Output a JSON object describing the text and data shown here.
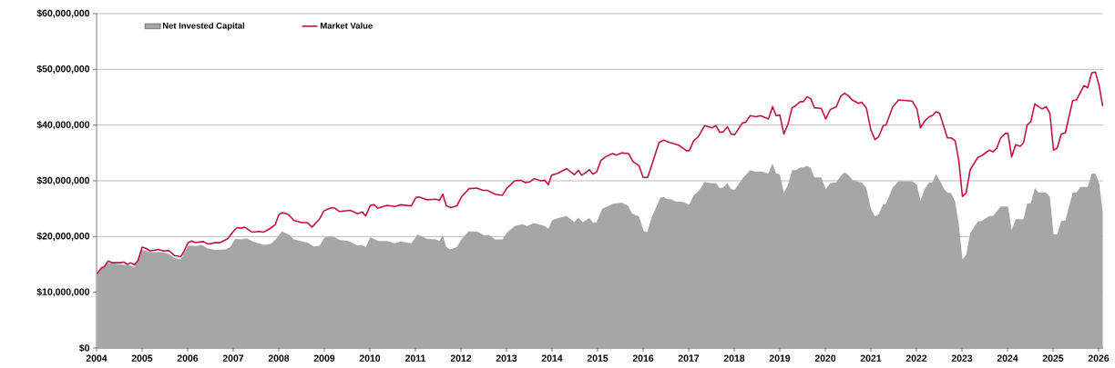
{
  "chart_data": {
    "type": "line",
    "xlim": [
      2004,
      2026.1
    ],
    "xticks": [
      2004,
      2005,
      2006,
      2007,
      2008,
      2009,
      2010,
      2011,
      2012,
      2013,
      2014,
      2015,
      2016,
      2017,
      2018,
      2019,
      2020,
      2021,
      2022,
      2023,
      2024,
      2025,
      2026
    ],
    "ylim": [
      0,
      60000000
    ],
    "yticks": [
      {
        "value": 0,
        "label": "$0"
      },
      {
        "value": 10000000,
        "label": "$10,000,000"
      },
      {
        "value": 20000000,
        "label": "$20,000,000"
      },
      {
        "value": 30000000,
        "label": "$30,000,000"
      },
      {
        "value": 40000000,
        "label": "$40,000,000"
      },
      {
        "value": 50000000,
        "label": "$50,000,000"
      },
      {
        "value": 60000000,
        "label": "$60,000,000"
      }
    ],
    "grid": "y",
    "legend": "top left",
    "series": [
      {
        "name": "Net Invested Capital",
        "type": "area",
        "color": "#a6a6a6",
        "x": [
          2004.01,
          2004.11,
          2004.25,
          2004.53,
          2004.75,
          2004.83,
          2004.99,
          2005.18,
          2005.41,
          2005.58,
          2005.71,
          2005.85,
          2006.01,
          2006.17,
          2006.31,
          2006.43,
          2006.6,
          2006.83,
          2006.93,
          2007.05,
          2007.17,
          2007.3,
          2007.43,
          2007.67,
          2007.83,
          2007.93,
          2008.07,
          2008.23,
          2008.33,
          2008.63,
          2008.77,
          2008.9,
          2009.0,
          2009.13,
          2009.23,
          2009.33,
          2009.53,
          2009.73,
          2009.83,
          2009.91,
          2010.01,
          2010.18,
          2010.38,
          2010.55,
          2010.68,
          2010.91,
          2011.05,
          2011.25,
          2011.45,
          2011.53,
          2011.6,
          2011.68,
          2011.76,
          2011.91,
          2012.01,
          2012.16,
          2012.35,
          2012.51,
          2012.61,
          2012.75,
          2012.91,
          2013.01,
          2013.18,
          2013.35,
          2013.45,
          2013.61,
          2013.84,
          2013.92,
          2014.0,
          2014.13,
          2014.32,
          2014.49,
          2014.58,
          2014.67,
          2014.82,
          2014.9,
          2014.98,
          2015.1,
          2015.25,
          2015.33,
          2015.53,
          2015.67,
          2015.76,
          2015.91,
          2016.01,
          2016.09,
          2016.18,
          2016.38,
          2016.45,
          2016.53,
          2016.61,
          2016.71,
          2016.88,
          2017.01,
          2017.11,
          2017.23,
          2017.35,
          2017.48,
          2017.6,
          2017.68,
          2017.76,
          2017.85,
          2017.93,
          2018.01,
          2018.18,
          2018.35,
          2018.48,
          2018.58,
          2018.75,
          2018.84,
          2018.92,
          2019.0,
          2019.09,
          2019.18,
          2019.27,
          2019.35,
          2019.45,
          2019.52,
          2019.6,
          2019.68,
          2019.76,
          2019.91,
          2020.01,
          2020.11,
          2020.24,
          2020.34,
          2020.42,
          2020.5,
          2020.59,
          2020.73,
          2020.8,
          2020.9,
          2021.0,
          2021.09,
          2021.17,
          2021.27,
          2021.33,
          2021.48,
          2021.61,
          2021.91,
          2022.01,
          2022.09,
          2022.18,
          2022.28,
          2022.35,
          2022.43,
          2022.51,
          2022.61,
          2022.68,
          2022.76,
          2022.85,
          2022.93,
          2023.01,
          2023.09,
          2023.18,
          2023.35,
          2023.43,
          2023.6,
          2023.68,
          2023.85,
          2024.01,
          2024.09,
          2024.18,
          2024.35,
          2024.43,
          2024.51,
          2024.6,
          2024.68,
          2024.85,
          2024.93,
          2025.01,
          2025.09,
          2025.18,
          2025.27,
          2025.43,
          2025.51,
          2025.6,
          2025.76,
          2025.85,
          2025.93,
          2026.01,
          2026.09
        ],
        "values": [
          13000000,
          14300000,
          15300000,
          15000000,
          14800000,
          14500000,
          17600000,
          17200000,
          17200000,
          16900000,
          16200000,
          15900000,
          18400000,
          18300000,
          18500000,
          17900000,
          17600000,
          17700000,
          18100000,
          19600000,
          19500000,
          19700000,
          19100000,
          18500000,
          18700000,
          19500000,
          20900000,
          20300000,
          19500000,
          18900000,
          18200000,
          18400000,
          19800000,
          20100000,
          19900000,
          19400000,
          19200000,
          18400000,
          18500000,
          18100000,
          19900000,
          19200000,
          19200000,
          18800000,
          19100000,
          18800000,
          20400000,
          19600000,
          19500000,
          19200000,
          20200000,
          18100000,
          17700000,
          18100000,
          19500000,
          20900000,
          20900000,
          20200000,
          20300000,
          19500000,
          19500000,
          20700000,
          21900000,
          22200000,
          21900000,
          22400000,
          21900000,
          21400000,
          22900000,
          23300000,
          23700000,
          22600000,
          23400000,
          22600000,
          23300000,
          22500000,
          22600000,
          25000000,
          25500000,
          25900000,
          26100000,
          25500000,
          24100000,
          23600000,
          21000000,
          20800000,
          23300000,
          27000000,
          27100000,
          26700000,
          26700000,
          26300000,
          26200000,
          25700000,
          27400000,
          28300000,
          29800000,
          29600000,
          29600000,
          28700000,
          28800000,
          29600000,
          28500000,
          28400000,
          30400000,
          31900000,
          31600000,
          31700000,
          31300000,
          33100000,
          31300000,
          31200000,
          27800000,
          29300000,
          31900000,
          31900000,
          32400000,
          32400000,
          32700000,
          32300000,
          30600000,
          30600000,
          28500000,
          29600000,
          29700000,
          30900000,
          31500000,
          31100000,
          30200000,
          29800000,
          29700000,
          28700000,
          25000000,
          23600000,
          24000000,
          25800000,
          25900000,
          28800000,
          29900000,
          29900000,
          29300000,
          26400000,
          28500000,
          29700000,
          29700000,
          31200000,
          30100000,
          28500000,
          27900000,
          27800000,
          26300000,
          22200000,
          15900000,
          16700000,
          20600000,
          22700000,
          22800000,
          23700000,
          23700000,
          25400000,
          25400000,
          21200000,
          23100000,
          23100000,
          25900000,
          26000000,
          28700000,
          27900000,
          27900000,
          27100000,
          20400000,
          20400000,
          22800000,
          22900000,
          27900000,
          27900000,
          28900000,
          28900000,
          31300000,
          31300000,
          29600000,
          24400000
        ]
      },
      {
        "name": "Market Value",
        "color": "#c0143c",
        "x": [
          2004.01,
          2004.11,
          2004.17,
          2004.25,
          2004.35,
          2004.51,
          2004.6,
          2004.68,
          2004.75,
          2004.83,
          2004.91,
          2005.0,
          2005.08,
          2005.18,
          2005.35,
          2005.48,
          2005.58,
          2005.71,
          2005.85,
          2005.91,
          2006.01,
          2006.09,
          2006.17,
          2006.35,
          2006.43,
          2006.5,
          2006.6,
          2006.71,
          2006.88,
          2007.01,
          2007.09,
          2007.17,
          2007.25,
          2007.41,
          2007.57,
          2007.67,
          2007.8,
          2007.92,
          2008.0,
          2008.08,
          2008.17,
          2008.23,
          2008.33,
          2008.5,
          2008.63,
          2008.73,
          2008.9,
          2008.99,
          2009.07,
          2009.17,
          2009.23,
          2009.33,
          2009.57,
          2009.73,
          2009.83,
          2009.91,
          2010.01,
          2010.09,
          2010.18,
          2010.38,
          2010.55,
          2010.68,
          2010.91,
          2011.01,
          2011.08,
          2011.25,
          2011.45,
          2011.53,
          2011.6,
          2011.68,
          2011.78,
          2011.91,
          2012.01,
          2012.18,
          2012.35,
          2012.48,
          2012.58,
          2012.75,
          2012.91,
          2013.01,
          2013.08,
          2013.18,
          2013.31,
          2013.41,
          2013.51,
          2013.61,
          2013.75,
          2013.84,
          2013.92,
          2013.99,
          2014.11,
          2014.21,
          2014.32,
          2014.41,
          2014.49,
          2014.58,
          2014.65,
          2014.73,
          2014.82,
          2014.9,
          2014.98,
          2015.07,
          2015.17,
          2015.25,
          2015.33,
          2015.41,
          2015.53,
          2015.68,
          2015.78,
          2015.91,
          2016.0,
          2016.1,
          2016.35,
          2016.45,
          2016.58,
          2016.78,
          2016.95,
          2017.01,
          2017.11,
          2017.21,
          2017.35,
          2017.51,
          2017.6,
          2017.68,
          2017.76,
          2017.85,
          2017.93,
          2018.01,
          2018.18,
          2018.25,
          2018.35,
          2018.48,
          2018.58,
          2018.75,
          2018.84,
          2018.92,
          2019.0,
          2019.09,
          2019.18,
          2019.27,
          2019.35,
          2019.45,
          2019.52,
          2019.6,
          2019.68,
          2019.76,
          2019.91,
          2020.01,
          2020.11,
          2020.24,
          2020.34,
          2020.42,
          2020.5,
          2020.59,
          2020.73,
          2020.8,
          2020.9,
          2021.0,
          2021.09,
          2021.17,
          2021.27,
          2021.33,
          2021.48,
          2021.61,
          2021.91,
          2022.01,
          2022.09,
          2022.18,
          2022.28,
          2022.35,
          2022.43,
          2022.51,
          2022.68,
          2022.76,
          2022.85,
          2022.93,
          2023.01,
          2023.09,
          2023.18,
          2023.35,
          2023.43,
          2023.6,
          2023.68,
          2023.76,
          2023.85,
          2023.95,
          2024.01,
          2024.09,
          2024.18,
          2024.28,
          2024.35,
          2024.43,
          2024.51,
          2024.6,
          2024.68,
          2024.76,
          2024.85,
          2024.93,
          2025.01,
          2025.09,
          2025.18,
          2025.27,
          2025.43,
          2025.51,
          2025.68,
          2025.76,
          2025.85,
          2025.93,
          2026.01,
          2026.09
        ],
        "values": [
          13300000,
          14400000,
          14600000,
          15600000,
          15300000,
          15300000,
          15400000,
          15000000,
          15300000,
          14900000,
          15700000,
          18100000,
          17900000,
          17400000,
          17700000,
          17400000,
          17500000,
          16600000,
          16400000,
          17200000,
          18900000,
          19200000,
          18900000,
          19100000,
          18700000,
          18700000,
          18900000,
          18900000,
          19600000,
          21000000,
          21600000,
          21500000,
          21700000,
          20800000,
          20900000,
          20800000,
          21400000,
          22100000,
          23900000,
          24300000,
          24100000,
          23800000,
          22900000,
          22500000,
          22500000,
          21700000,
          23200000,
          24600000,
          24900000,
          25200000,
          25100000,
          24500000,
          24700000,
          24100000,
          24400000,
          23700000,
          25600000,
          25700000,
          25100000,
          25600000,
          25400000,
          25700000,
          25500000,
          27000000,
          27100000,
          26600000,
          26700000,
          26500000,
          27600000,
          25500000,
          25200000,
          25500000,
          27100000,
          28600000,
          28700000,
          28300000,
          28300000,
          27600000,
          27400000,
          28700000,
          29200000,
          30000000,
          30100000,
          29700000,
          29800000,
          30400000,
          30000000,
          30100000,
          29300000,
          31000000,
          31300000,
          31700000,
          32200000,
          31600000,
          31100000,
          31900000,
          31000000,
          31400000,
          32000000,
          31200000,
          31600000,
          33600000,
          34300000,
          34600000,
          34900000,
          34600000,
          35000000,
          34900000,
          33400000,
          32700000,
          30600000,
          30600000,
          36900000,
          37300000,
          36900000,
          36400000,
          35400000,
          35400000,
          37200000,
          37900000,
          39900000,
          39500000,
          39900000,
          38700000,
          38800000,
          39700000,
          38400000,
          38300000,
          40400000,
          40500000,
          41700000,
          41500000,
          41700000,
          41100000,
          43300000,
          41700000,
          41800000,
          38400000,
          40200000,
          43100000,
          43500000,
          44200000,
          44200000,
          45100000,
          44700000,
          43100000,
          43000000,
          41100000,
          42800000,
          43300000,
          45200000,
          45700000,
          45300000,
          44500000,
          43900000,
          44100000,
          43100000,
          39100000,
          37400000,
          37900000,
          39900000,
          40000000,
          43300000,
          44500000,
          44300000,
          42900000,
          39500000,
          40700000,
          41500000,
          41700000,
          42400000,
          42100000,
          37700000,
          37700000,
          37200000,
          33600000,
          27200000,
          27800000,
          32000000,
          34200000,
          34500000,
          35500000,
          35200000,
          35800000,
          37700000,
          38500000,
          38500000,
          34300000,
          36500000,
          36200000,
          36800000,
          40000000,
          40600000,
          43800000,
          43300000,
          42900000,
          43300000,
          42100000,
          35500000,
          35900000,
          38400000,
          38600000,
          44400000,
          44500000,
          47100000,
          46700000,
          49400000,
          49500000,
          47100000,
          43400000
        ]
      }
    ]
  }
}
